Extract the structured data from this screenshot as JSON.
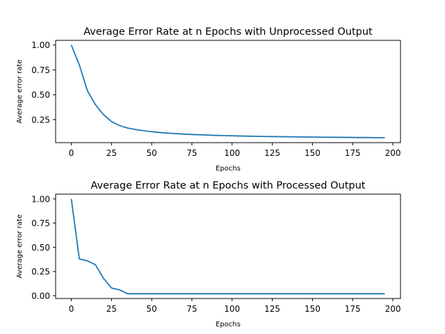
{
  "chart_data": [
    {
      "type": "line",
      "title": "Average Error Rate at n Epochs with Unprocessed Output",
      "xlabel": "Epochs",
      "ylabel": "Average error rate",
      "xlim": [
        -9.75,
        204.75
      ],
      "ylim": [
        0.018,
        1.047
      ],
      "xticks": [
        0,
        25,
        50,
        75,
        100,
        125,
        150,
        175,
        200
      ],
      "xtick_labels": [
        "0",
        "25",
        "50",
        "75",
        "100",
        "125",
        "150",
        "175",
        "200"
      ],
      "yticks": [
        0.25,
        0.5,
        0.75,
        1.0
      ],
      "ytick_labels": [
        "0.25",
        "0.50",
        "0.75",
        "1.00"
      ],
      "grid": false,
      "color": "#1f77b4",
      "x": [
        0,
        5,
        10,
        15,
        20,
        25,
        30,
        35,
        40,
        45,
        50,
        55,
        60,
        65,
        70,
        75,
        80,
        85,
        90,
        95,
        100,
        105,
        110,
        115,
        120,
        125,
        130,
        135,
        140,
        145,
        150,
        155,
        160,
        165,
        170,
        175,
        180,
        185,
        190,
        195
      ],
      "y": [
        1.0,
        0.8,
        0.54,
        0.4,
        0.3,
        0.23,
        0.19,
        0.165,
        0.15,
        0.138,
        0.128,
        0.12,
        0.114,
        0.109,
        0.104,
        0.1,
        0.097,
        0.094,
        0.091,
        0.089,
        0.087,
        0.085,
        0.083,
        0.082,
        0.08,
        0.079,
        0.078,
        0.077,
        0.076,
        0.075,
        0.074,
        0.073,
        0.072,
        0.072,
        0.071,
        0.07,
        0.069,
        0.069,
        0.068,
        0.068
      ]
    },
    {
      "type": "line",
      "title": "Average Error Rate at n Epochs with Processed Output",
      "xlabel": "Epochs",
      "ylabel": "Average error rate",
      "xlim": [
        -9.75,
        204.75
      ],
      "ylim": [
        -0.029,
        1.049
      ],
      "xticks": [
        0,
        25,
        50,
        75,
        100,
        125,
        150,
        175,
        200
      ],
      "xtick_labels": [
        "0",
        "25",
        "50",
        "75",
        "100",
        "125",
        "150",
        "175",
        "200"
      ],
      "yticks": [
        0.0,
        0.25,
        0.5,
        0.75,
        1.0
      ],
      "ytick_labels": [
        "0.00",
        "0.25",
        "0.50",
        "0.75",
        "1.00"
      ],
      "grid": false,
      "color": "#1f77b4",
      "x": [
        0,
        5,
        10,
        15,
        20,
        25,
        30,
        35,
        40,
        45,
        50,
        55,
        60,
        65,
        70,
        75,
        80,
        85,
        90,
        95,
        100,
        105,
        110,
        115,
        120,
        125,
        130,
        135,
        140,
        145,
        150,
        155,
        160,
        165,
        170,
        175,
        180,
        185,
        190,
        195
      ],
      "y": [
        1.0,
        0.38,
        0.36,
        0.32,
        0.18,
        0.08,
        0.06,
        0.02,
        0.02,
        0.02,
        0.02,
        0.02,
        0.02,
        0.02,
        0.02,
        0.02,
        0.02,
        0.02,
        0.02,
        0.02,
        0.02,
        0.02,
        0.02,
        0.02,
        0.02,
        0.02,
        0.02,
        0.02,
        0.02,
        0.02,
        0.02,
        0.02,
        0.02,
        0.02,
        0.02,
        0.02,
        0.02,
        0.02,
        0.02,
        0.02
      ]
    }
  ]
}
